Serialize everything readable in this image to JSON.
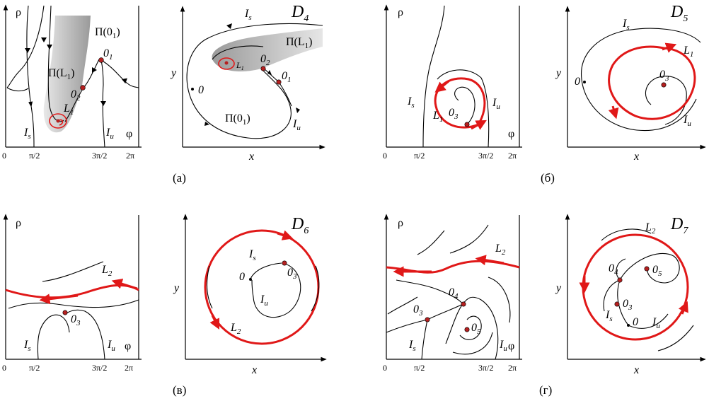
{
  "labels": {
    "rho": "ρ",
    "phi": "φ",
    "x": "x",
    "y": "y",
    "zero": "0",
    "pi2": "π/2",
    "tpi2": "3π/2",
    "twopi": "2π",
    "Is": "I",
    "Is_sub": "s",
    "Iu": "I",
    "Iu_sub": "u",
    "O": "0",
    "sub1": "1",
    "sub2": "2",
    "sub3": "3",
    "sub4": "4",
    "sub5": "5",
    "L": "L",
    "Pi_O1": "Π(0",
    "Pi_L1": "Π(L",
    "close": ")"
  },
  "panels": {
    "D4": "D",
    "D4_sub": "4",
    "D5": "D",
    "D5_sub": "5",
    "D6": "D",
    "D6_sub": "6",
    "D7": "D",
    "D7_sub": "7"
  },
  "captions": {
    "a": "(а)",
    "b": "(б)",
    "c": "(в)",
    "d": "(г)"
  },
  "colors": {
    "limit_cycle": "#e01818",
    "fixed_point": "#b52020",
    "shade": "#bdbdbd"
  }
}
